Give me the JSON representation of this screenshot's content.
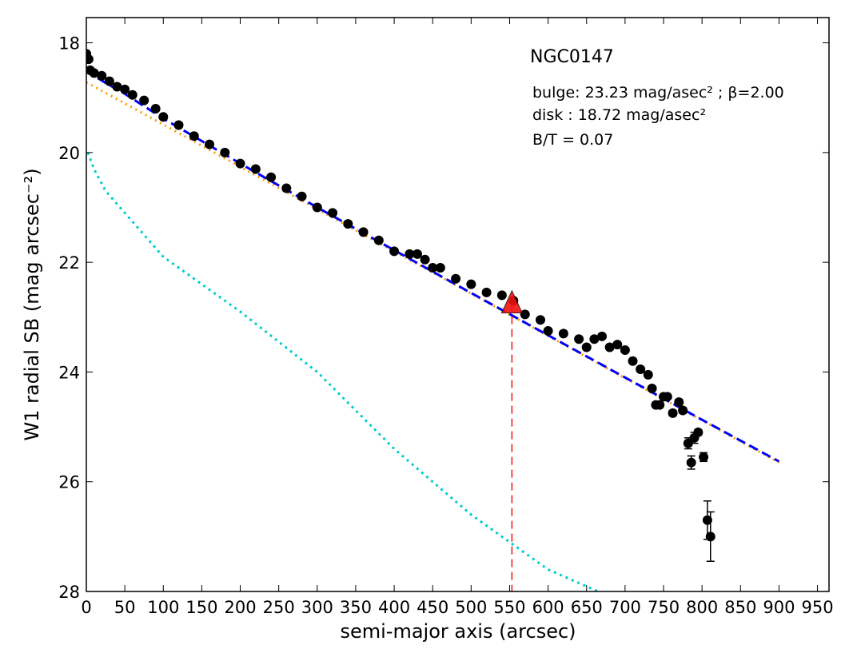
{
  "chart_data": {
    "type": "scatter",
    "annotations": [
      "NGC0147",
      "bulge: 23.23 mag/asec² ; β=2.00",
      "disk  : 18.72 mag/asec²",
      "B/T = 0.07"
    ],
    "xlabel": "semi-major axis (arcsec)",
    "ylabel": "W1 radial SB (mag arcsec⁻²)",
    "xlim": [
      0,
      965
    ],
    "ylim": [
      17.54,
      28
    ],
    "y_inverted": true,
    "xticks": [
      0,
      50,
      100,
      150,
      200,
      250,
      300,
      350,
      400,
      450,
      500,
      550,
      600,
      650,
      700,
      750,
      800,
      850,
      900,
      950
    ],
    "yticks": [
      18,
      20,
      22,
      24,
      26,
      28
    ],
    "series": [
      {
        "kind": "points",
        "color": "#000000",
        "x": [
          0,
          3,
          5,
          10,
          20,
          30,
          40,
          50,
          60,
          75,
          90,
          100,
          120,
          140,
          160,
          180,
          200,
          220,
          240,
          260,
          280,
          300,
          320,
          340,
          360,
          380,
          400,
          420,
          430,
          440,
          450,
          460,
          480,
          500,
          520,
          540,
          555,
          570,
          590,
          600,
          620,
          640,
          650,
          660,
          670,
          680,
          690,
          700,
          710,
          720,
          730,
          735,
          740,
          745,
          750,
          755,
          762,
          770,
          775,
          782,
          786,
          790,
          795,
          802,
          807,
          811
        ],
        "values": [
          18.2,
          18.3,
          18.5,
          18.55,
          18.6,
          18.7,
          18.8,
          18.85,
          18.95,
          19.05,
          19.2,
          19.35,
          19.5,
          19.7,
          19.85,
          20.0,
          20.2,
          20.3,
          20.45,
          20.65,
          20.8,
          21.0,
          21.1,
          21.3,
          21.45,
          21.6,
          21.8,
          21.85,
          21.85,
          21.95,
          22.1,
          22.1,
          22.3,
          22.4,
          22.55,
          22.6,
          22.7,
          22.95,
          23.05,
          23.25,
          23.3,
          23.4,
          23.55,
          23.4,
          23.35,
          23.55,
          23.5,
          23.6,
          23.8,
          23.95,
          24.05,
          24.3,
          24.6,
          24.6,
          24.45,
          24.45,
          24.75,
          24.55,
          24.7,
          25.3,
          25.65,
          25.2,
          25.1,
          25.55,
          26.7,
          27.0
        ],
        "errors": [
          0.02,
          0.02,
          0.02,
          0.02,
          0.02,
          0.02,
          0.02,
          0.02,
          0.02,
          0.02,
          0.02,
          0.02,
          0.02,
          0.02,
          0.02,
          0.02,
          0.02,
          0.02,
          0.02,
          0.02,
          0.02,
          0.02,
          0.02,
          0.02,
          0.02,
          0.02,
          0.02,
          0.02,
          0.02,
          0.02,
          0.02,
          0.02,
          0.02,
          0.02,
          0.02,
          0.02,
          0.02,
          0.02,
          0.02,
          0.02,
          0.02,
          0.02,
          0.02,
          0.02,
          0.02,
          0.02,
          0.02,
          0.02,
          0.03,
          0.03,
          0.03,
          0.04,
          0.04,
          0.04,
          0.04,
          0.04,
          0.05,
          0.05,
          0.05,
          0.1,
          0.12,
          0.1,
          0.05,
          0.08,
          0.35,
          0.45
        ]
      },
      {
        "kind": "line",
        "color": "#ff9900",
        "dash": "2 5",
        "x": [
          0,
          100,
          200,
          300,
          400,
          500,
          600,
          700,
          800,
          900
        ],
        "values": [
          18.72,
          19.49,
          20.26,
          21.03,
          21.8,
          22.57,
          23.34,
          24.11,
          24.88,
          25.65
        ]
      },
      {
        "kind": "line",
        "color": "#0000ff",
        "dash": "12 6",
        "x": [
          0,
          10,
          25,
          50,
          100,
          200,
          300,
          400,
          500,
          600,
          700,
          800,
          900
        ],
        "values": [
          18.48,
          18.6,
          18.73,
          18.93,
          19.38,
          20.2,
          21.0,
          21.78,
          22.56,
          23.33,
          24.1,
          24.87,
          25.63
        ]
      },
      {
        "kind": "line",
        "color": "#00cccc",
        "dash": "3 5",
        "x": [
          2,
          10,
          25,
          50,
          100,
          200,
          300,
          400,
          500,
          600,
          665
        ],
        "values": [
          20.0,
          20.3,
          20.7,
          21.1,
          21.9,
          22.9,
          24.0,
          25.4,
          26.6,
          27.6,
          28.0
        ]
      }
    ],
    "marker": {
      "color": "#ee1111",
      "x": 553,
      "y": 22.75
    }
  }
}
